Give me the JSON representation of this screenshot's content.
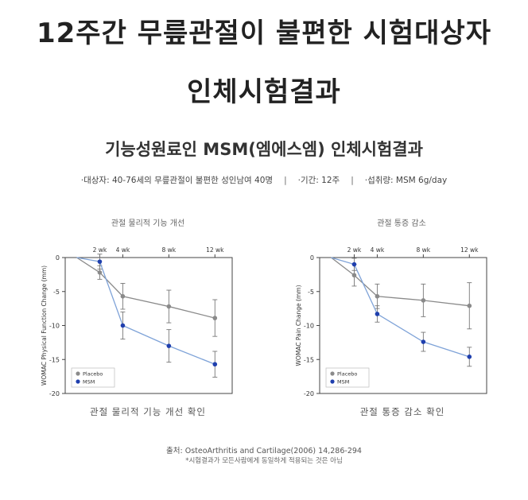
{
  "header": {
    "line1": "12주간 무릎관절이 불편한 시험대상자",
    "line2": "인체시험결과",
    "subtitle": "기능성원료인 MSM(엠에스엠) 인체시험결과"
  },
  "info": {
    "subjects": "·대상자: 40-76세의 무릎관절이 불편한 성인남여 40명",
    "period": "·기간: 12주",
    "intake": "·섭취량: MSM 6g/day",
    "separator": "|"
  },
  "colors": {
    "placebo": "#8a8a8a",
    "msm": "#1f3fae",
    "msm_line": "#7fa3d8"
  },
  "chart_data": [
    {
      "type": "line",
      "title": "관절 물리적 기능 개선",
      "caption": "관절 물리적 기능 개선 확인",
      "ylabel": "WOMAC Physical Function Change (mm)",
      "ylim": [
        -20,
        0
      ],
      "yticks": [
        0,
        -5,
        -10,
        -15,
        -20
      ],
      "x": [
        0,
        2,
        4,
        8,
        12
      ],
      "xtick_labels": [
        "2 wk",
        "4 wk",
        "8 wk",
        "12 wk"
      ],
      "legend": "bottom-left",
      "series": [
        {
          "name": "Placebo",
          "values": [
            0,
            -2.2,
            -5.7,
            -7.2,
            -8.9
          ],
          "error": [
            0,
            1.0,
            1.9,
            2.4,
            2.7
          ]
        },
        {
          "name": "MSM",
          "values": [
            0,
            -0.6,
            -10.0,
            -13.0,
            -15.7
          ],
          "error": [
            0,
            1.1,
            2.0,
            2.4,
            1.9
          ]
        }
      ]
    },
    {
      "type": "line",
      "title": "관절 통증 감소",
      "caption": "관절 통증 감소 확인",
      "ylabel": "WOMAC Pain Change (mm)",
      "ylim": [
        -20,
        0
      ],
      "yticks": [
        0,
        -5,
        -10,
        -15,
        -20
      ],
      "x": [
        0,
        2,
        4,
        8,
        12
      ],
      "xtick_labels": [
        "2 wk",
        "4 wk",
        "8 wk",
        "12 wk"
      ],
      "legend": "bottom-left",
      "series": [
        {
          "name": "Placebo",
          "values": [
            0,
            -2.6,
            -5.7,
            -6.3,
            -7.1
          ],
          "error": [
            0,
            1.6,
            1.8,
            2.4,
            3.4
          ]
        },
        {
          "name": "MSM",
          "values": [
            0,
            -1.0,
            -8.3,
            -12.4,
            -14.6
          ],
          "error": [
            0,
            0.9,
            1.2,
            1.4,
            1.4
          ]
        }
      ]
    }
  ],
  "footer": {
    "source": "출처: OsteoArthritis and Cartilage(2006) 14,286-294",
    "note": "*시험결과가 모든사람에게 동일하게 적용되는 것은 아님"
  }
}
